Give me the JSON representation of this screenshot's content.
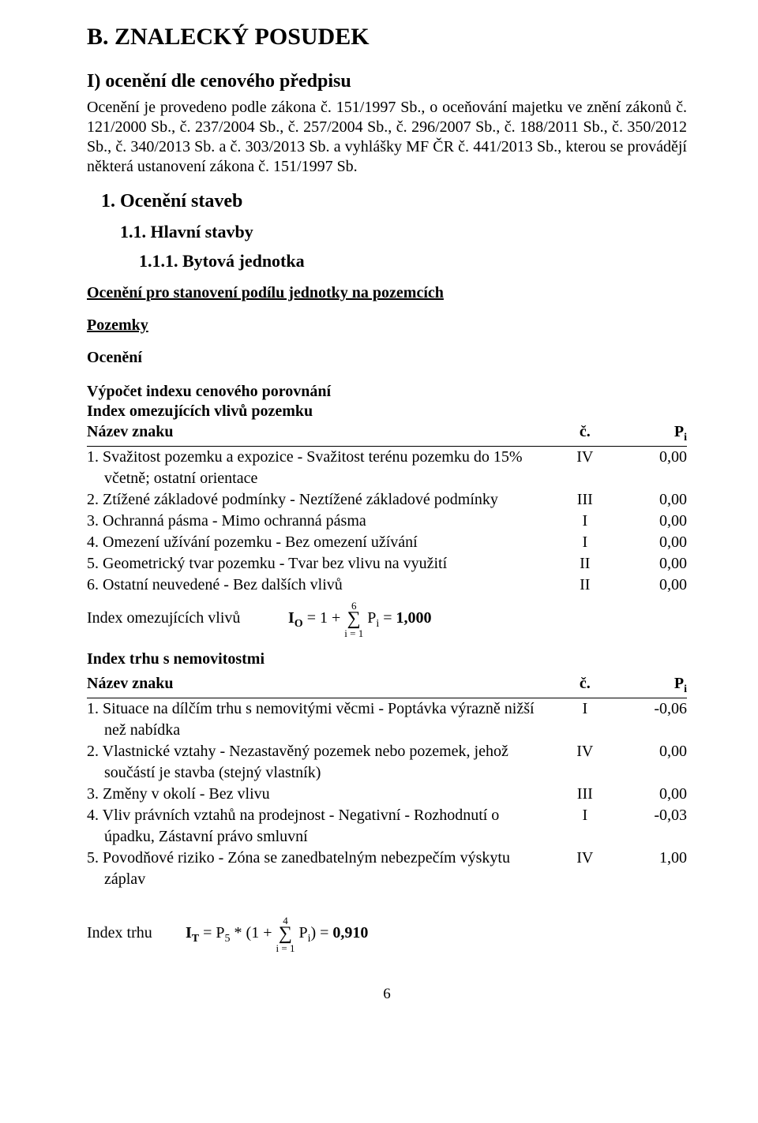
{
  "title": "B. ZNALECKÝ POSUDEK",
  "section_i": "I) ocenění dle cenového předpisu",
  "intro": "Ocenění je provedeno podle zákona č. 151/1997 Sb., o oceňování majetku ve znění zákonů č. 121/2000 Sb., č. 237/2004 Sb., č. 257/2004 Sb., č. 296/2007 Sb., č. 188/2011 Sb., č. 350/2012 Sb., č. 340/2013 Sb. a č. 303/2013 Sb. a vyhlášky MF ČR č. 441/2013 Sb., kterou se provádějí některá ustanovení zákona č. 151/1997 Sb.",
  "h1": "1. Ocenění staveb",
  "h2": "1.1. Hlavní stavby",
  "h3": "1.1.1. Bytová jednotka",
  "u1": "Ocenění pro stanovení podílu jednotky na pozemcích",
  "u2": "Pozemky",
  "u3": "Ocenění",
  "vpocet": "Výpočet indexu cenového porovnání",
  "section2_title": "Index trhu s nemovitostmi",
  "tbl1": {
    "title": "Index omezujících vlivů pozemku",
    "hdr": {
      "c1": "Název znaku",
      "c2": "č.",
      "c3": "Pi"
    },
    "hdr_c3_base": "P",
    "hdr_c3_sub": "i",
    "rows": [
      {
        "n": "1.",
        "txt": "Svažitost pozemku a expozice - Svažitost terénu pozemku do 15% včetně; ostatní orientace",
        "c2": "IV",
        "c3": "0,00",
        "cont": true,
        "line1": "Svažitost pozemku a expozice - Svažitost terénu pozemku do 15%",
        "line2": "včetně; ostatní orientace"
      },
      {
        "n": "2.",
        "txt": "Ztížené základové podmínky - Neztížené základové podmínky",
        "c2": "III",
        "c3": "0,00"
      },
      {
        "n": "3.",
        "txt": "Ochranná pásma - Mimo ochranná pásma",
        "c2": "I",
        "c3": "0,00"
      },
      {
        "n": "4.",
        "txt": "Omezení užívání pozemku - Bez omezení užívání",
        "c2": "I",
        "c3": "0,00"
      },
      {
        "n": "5.",
        "txt": "Geometrický tvar pozemku - Tvar bez vlivu na využití",
        "c2": "II",
        "c3": "0,00"
      },
      {
        "n": "6.",
        "txt": "Ostatní neuvedené - Bez dalších vlivů",
        "c2": "II",
        "c3": "0,00"
      }
    ],
    "formula": {
      "label": "Index omezujících vlivů",
      "lhs_base": "I",
      "lhs_sub": "O",
      "pre": " = 1 + ",
      "sum_top": "6",
      "sum_bot": "i = 1",
      "mid_base": "P",
      "mid_sub": "i",
      "eq": " = ",
      "result": "1,000"
    }
  },
  "tbl2": {
    "hdr": {
      "c1": "Název znaku",
      "c2": "č.",
      "c3": "Pi"
    },
    "hdr_c3_base": "P",
    "hdr_c3_sub": "i",
    "rows": [
      {
        "n": "1.",
        "line1": "Situace na dílčím trhu s nemovitými věcmi - Poptávka výrazně nižší",
        "line2": "než nabídka",
        "c2": "I",
        "c3": "-0,06",
        "cont": true
      },
      {
        "n": "2.",
        "line1": "Vlastnické vztahy - Nezastavěný pozemek nebo pozemek, jehož",
        "line2": "součástí je stavba (stejný vlastník)",
        "c2": "IV",
        "c3": "0,00",
        "cont": true
      },
      {
        "n": "3.",
        "txt": "Změny v okolí - Bez vlivu",
        "c2": "III",
        "c3": "0,00"
      },
      {
        "n": "4.",
        "line1": "Vliv právních vztahů na prodejnost - Negativní - Rozhodnutí o",
        "line2": "úpadku, Zástavní právo smluvní",
        "c2": "I",
        "c3": "-0,03",
        "cont": true
      },
      {
        "n": "5.",
        "line1": "Povodňové riziko - Zóna se zanedbatelným nebezpečím výskytu",
        "line2": "záplav",
        "c2": "IV",
        "c3": "1,00",
        "cont": true
      }
    ],
    "formula": {
      "label": "Index trhu",
      "lhs_base": "I",
      "lhs_sub": "T",
      "p5_base": "P",
      "p5_sub": "5",
      "pre1": " = ",
      "pre2": " * (1 + ",
      "sum_top": "4",
      "sum_bot": "i = 1",
      "mid_base": "P",
      "mid_sub": "i",
      "post": ") = ",
      "result": "0,910"
    }
  },
  "page_num": "6"
}
